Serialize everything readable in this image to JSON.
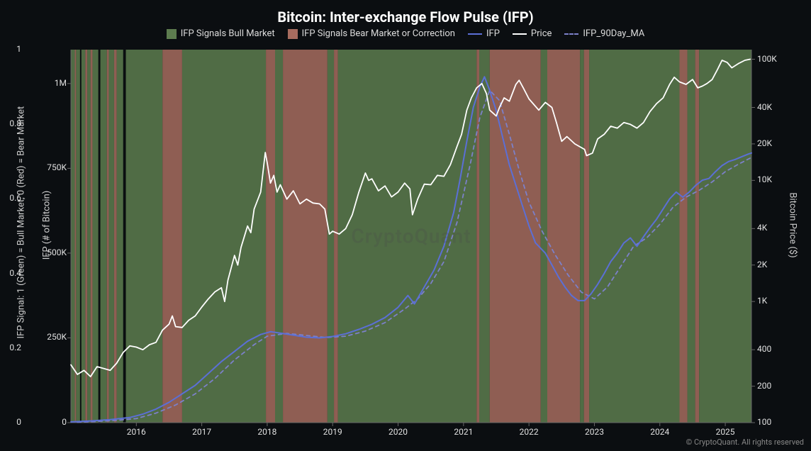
{
  "title": {
    "text": "Bitcoin: Inter-exchange Flow Pulse (IFP)",
    "fontsize": 20,
    "color": "#ffffff"
  },
  "copyright": "© CryptoQuant. All rights reserved",
  "watermark": "CryptoQuant",
  "legend": {
    "bull": {
      "label": "IFP Signals Bull Market",
      "color": "#5d7c4f"
    },
    "bear": {
      "label": "IFP Signals Bear Market or Correction",
      "color": "#a76c5f"
    },
    "ifp": {
      "label": "IFP",
      "color": "#5b6fd6"
    },
    "price": {
      "label": "Price",
      "color": "#ffffff"
    },
    "ma": {
      "label": "IFP_90Day_MA",
      "color": "#7c80c9"
    }
  },
  "chart": {
    "type": "composite-timeseries",
    "background": "#0b0e11",
    "plot_border_color": "#666666",
    "x": {
      "range": [
        2015.0,
        2025.4
      ],
      "ticks": [
        2016,
        2017,
        2018,
        2019,
        2020,
        2021,
        2022,
        2023,
        2024,
        2025
      ],
      "tick_color": "#e0e0e0",
      "fontsize": 12
    },
    "y_signal": {
      "label": "IFP Signal: 1 (Green) = Bull Market, 0 (Red) = Bear Market",
      "range": [
        0,
        1
      ],
      "ticks": [
        0,
        0.2,
        0.4,
        0.6,
        0.8,
        1
      ],
      "fontsize": 12
    },
    "y_ifp": {
      "label": "IFP (# of Bitcoin)",
      "range": [
        0,
        1100000
      ],
      "ticks": [
        0,
        250000,
        500000,
        750000,
        1000000
      ],
      "tick_labels": [
        "0",
        "250K",
        "500K",
        "750K",
        "1M"
      ],
      "fontsize": 12
    },
    "y_price": {
      "label": "Bitcoin Price ($)",
      "scale": "log",
      "range": [
        100,
        120000
      ],
      "ticks": [
        100,
        200,
        400,
        1000,
        2000,
        4000,
        10000,
        20000,
        40000,
        100000
      ],
      "tick_labels": [
        "100",
        "200",
        "400",
        "1K",
        "2K",
        "4K",
        "10K",
        "20K",
        "40K",
        "100K"
      ],
      "fontsize": 12
    },
    "region_colors": {
      "bull": "#5d7c4f",
      "bear": "#a76c5f",
      "neutral": "#0b0e11"
    },
    "region_opacity": 0.85,
    "regions": [
      {
        "from": 2015.0,
        "to": 2015.06,
        "s": "bull"
      },
      {
        "from": 2015.06,
        "to": 2015.08,
        "s": "bear"
      },
      {
        "from": 2015.08,
        "to": 2015.14,
        "s": "bull"
      },
      {
        "from": 2015.14,
        "to": 2015.16,
        "s": "neutral"
      },
      {
        "from": 2015.16,
        "to": 2015.22,
        "s": "bull"
      },
      {
        "from": 2015.22,
        "to": 2015.25,
        "s": "bear"
      },
      {
        "from": 2015.25,
        "to": 2015.3,
        "s": "bull"
      },
      {
        "from": 2015.3,
        "to": 2015.33,
        "s": "bear"
      },
      {
        "from": 2015.33,
        "to": 2015.42,
        "s": "bull"
      },
      {
        "from": 2015.42,
        "to": 2015.45,
        "s": "neutral"
      },
      {
        "from": 2015.45,
        "to": 2015.55,
        "s": "bull"
      },
      {
        "from": 2015.55,
        "to": 2015.58,
        "s": "bear"
      },
      {
        "from": 2015.58,
        "to": 2015.66,
        "s": "bull"
      },
      {
        "from": 2015.66,
        "to": 2015.7,
        "s": "bear"
      },
      {
        "from": 2015.7,
        "to": 2015.8,
        "s": "bull"
      },
      {
        "from": 2015.8,
        "to": 2015.84,
        "s": "neutral"
      },
      {
        "from": 2015.84,
        "to": 2016.4,
        "s": "bull"
      },
      {
        "from": 2016.4,
        "to": 2016.7,
        "s": "bear"
      },
      {
        "from": 2016.7,
        "to": 2017.98,
        "s": "bull"
      },
      {
        "from": 2017.98,
        "to": 2018.12,
        "s": "bear"
      },
      {
        "from": 2018.12,
        "to": 2018.24,
        "s": "bull"
      },
      {
        "from": 2018.24,
        "to": 2018.92,
        "s": "bear"
      },
      {
        "from": 2018.92,
        "to": 2019.02,
        "s": "bull"
      },
      {
        "from": 2019.02,
        "to": 2019.08,
        "s": "bear"
      },
      {
        "from": 2019.08,
        "to": 2021.2,
        "s": "bull"
      },
      {
        "from": 2021.2,
        "to": 2021.24,
        "s": "bear"
      },
      {
        "from": 2021.24,
        "to": 2021.4,
        "s": "bull"
      },
      {
        "from": 2021.4,
        "to": 2022.18,
        "s": "bear"
      },
      {
        "from": 2022.18,
        "to": 2022.28,
        "s": "bull"
      },
      {
        "from": 2022.28,
        "to": 2022.78,
        "s": "bear"
      },
      {
        "from": 2022.78,
        "to": 2022.84,
        "s": "bull"
      },
      {
        "from": 2022.84,
        "to": 2022.92,
        "s": "bear"
      },
      {
        "from": 2022.92,
        "to": 2024.3,
        "s": "bull"
      },
      {
        "from": 2024.3,
        "to": 2024.42,
        "s": "bear"
      },
      {
        "from": 2024.42,
        "to": 2024.54,
        "s": "bull"
      },
      {
        "from": 2024.54,
        "to": 2024.6,
        "s": "bear"
      },
      {
        "from": 2024.6,
        "to": 2025.4,
        "s": "bull"
      }
    ],
    "series_price": {
      "color": "#ffffff",
      "width": 1.8,
      "pts": [
        [
          2015.0,
          300
        ],
        [
          2015.1,
          250
        ],
        [
          2015.2,
          270
        ],
        [
          2015.3,
          240
        ],
        [
          2015.4,
          290
        ],
        [
          2015.5,
          280
        ],
        [
          2015.6,
          270
        ],
        [
          2015.7,
          310
        ],
        [
          2015.8,
          380
        ],
        [
          2015.9,
          430
        ],
        [
          2016.0,
          420
        ],
        [
          2016.1,
          400
        ],
        [
          2016.2,
          440
        ],
        [
          2016.3,
          460
        ],
        [
          2016.4,
          580
        ],
        [
          2016.5,
          650
        ],
        [
          2016.55,
          760
        ],
        [
          2016.6,
          620
        ],
        [
          2016.7,
          610
        ],
        [
          2016.8,
          700
        ],
        [
          2016.9,
          760
        ],
        [
          2017.0,
          900
        ],
        [
          2017.1,
          1050
        ],
        [
          2017.2,
          1200
        ],
        [
          2017.3,
          1300
        ],
        [
          2017.35,
          1000
        ],
        [
          2017.4,
          1500
        ],
        [
          2017.5,
          2400
        ],
        [
          2017.55,
          2000
        ],
        [
          2017.6,
          2800
        ],
        [
          2017.7,
          4200
        ],
        [
          2017.75,
          3700
        ],
        [
          2017.8,
          5800
        ],
        [
          2017.9,
          8000
        ],
        [
          2017.97,
          17000
        ],
        [
          2018.0,
          14000
        ],
        [
          2018.05,
          9500
        ],
        [
          2018.1,
          11000
        ],
        [
          2018.15,
          8000
        ],
        [
          2018.2,
          9200
        ],
        [
          2018.3,
          7000
        ],
        [
          2018.4,
          8200
        ],
        [
          2018.5,
          6400
        ],
        [
          2018.6,
          7000
        ],
        [
          2018.7,
          6500
        ],
        [
          2018.8,
          6400
        ],
        [
          2018.88,
          5800
        ],
        [
          2018.95,
          3600
        ],
        [
          2019.0,
          3800
        ],
        [
          2019.1,
          3600
        ],
        [
          2019.2,
          4000
        ],
        [
          2019.3,
          5200
        ],
        [
          2019.4,
          8000
        ],
        [
          2019.5,
          11500
        ],
        [
          2019.55,
          10000
        ],
        [
          2019.6,
          10300
        ],
        [
          2019.7,
          8200
        ],
        [
          2019.8,
          9000
        ],
        [
          2019.9,
          7300
        ],
        [
          2020.0,
          8000
        ],
        [
          2020.1,
          9500
        ],
        [
          2020.18,
          8500
        ],
        [
          2020.22,
          5200
        ],
        [
          2020.3,
          7000
        ],
        [
          2020.4,
          9300
        ],
        [
          2020.5,
          9200
        ],
        [
          2020.6,
          11000
        ],
        [
          2020.7,
          10800
        ],
        [
          2020.8,
          13500
        ],
        [
          2020.9,
          19000
        ],
        [
          2020.97,
          24000
        ],
        [
          2021.05,
          38000
        ],
        [
          2021.12,
          48000
        ],
        [
          2021.2,
          58000
        ],
        [
          2021.28,
          63000
        ],
        [
          2021.35,
          52000
        ],
        [
          2021.4,
          38000
        ],
        [
          2021.5,
          34000
        ],
        [
          2021.55,
          40000
        ],
        [
          2021.62,
          48000
        ],
        [
          2021.7,
          45000
        ],
        [
          2021.8,
          62000
        ],
        [
          2021.85,
          67000
        ],
        [
          2021.92,
          57000
        ],
        [
          2022.0,
          47000
        ],
        [
          2022.08,
          42000
        ],
        [
          2022.15,
          38000
        ],
        [
          2022.25,
          44000
        ],
        [
          2022.35,
          40000
        ],
        [
          2022.42,
          30000
        ],
        [
          2022.5,
          21000
        ],
        [
          2022.58,
          23000
        ],
        [
          2022.7,
          20000
        ],
        [
          2022.85,
          18000
        ],
        [
          2022.88,
          16000
        ],
        [
          2022.97,
          16800
        ],
        [
          2023.05,
          22000
        ],
        [
          2023.15,
          24000
        ],
        [
          2023.25,
          28000
        ],
        [
          2023.35,
          27000
        ],
        [
          2023.45,
          30000
        ],
        [
          2023.55,
          29000
        ],
        [
          2023.65,
          27000
        ],
        [
          2023.75,
          30000
        ],
        [
          2023.85,
          37000
        ],
        [
          2023.95,
          43000
        ],
        [
          2024.05,
          48000
        ],
        [
          2024.15,
          62000
        ],
        [
          2024.22,
          71000
        ],
        [
          2024.3,
          65000
        ],
        [
          2024.4,
          62000
        ],
        [
          2024.5,
          68000
        ],
        [
          2024.58,
          58000
        ],
        [
          2024.65,
          60000
        ],
        [
          2024.72,
          63000
        ],
        [
          2024.8,
          68000
        ],
        [
          2024.88,
          82000
        ],
        [
          2024.95,
          98000
        ],
        [
          2025.03,
          94000
        ],
        [
          2025.1,
          85000
        ],
        [
          2025.2,
          92000
        ],
        [
          2025.3,
          98000
        ],
        [
          2025.38,
          100000
        ]
      ]
    },
    "series_ifp": {
      "color": "#5b6fd6",
      "width": 2.0,
      "pts": [
        [
          2015.0,
          2000
        ],
        [
          2015.3,
          5000
        ],
        [
          2015.6,
          9000
        ],
        [
          2015.9,
          15000
        ],
        [
          2016.1,
          25000
        ],
        [
          2016.3,
          40000
        ],
        [
          2016.5,
          60000
        ],
        [
          2016.7,
          85000
        ],
        [
          2016.9,
          110000
        ],
        [
          2017.1,
          145000
        ],
        [
          2017.3,
          180000
        ],
        [
          2017.5,
          210000
        ],
        [
          2017.7,
          240000
        ],
        [
          2017.9,
          260000
        ],
        [
          2018.05,
          268000
        ],
        [
          2018.2,
          264000
        ],
        [
          2018.4,
          258000
        ],
        [
          2018.6,
          252000
        ],
        [
          2018.8,
          250000
        ],
        [
          2019.0,
          254000
        ],
        [
          2019.2,
          262000
        ],
        [
          2019.4,
          275000
        ],
        [
          2019.6,
          290000
        ],
        [
          2019.8,
          310000
        ],
        [
          2020.0,
          340000
        ],
        [
          2020.15,
          375000
        ],
        [
          2020.25,
          350000
        ],
        [
          2020.4,
          400000
        ],
        [
          2020.55,
          450000
        ],
        [
          2020.7,
          520000
        ],
        [
          2020.85,
          620000
        ],
        [
          2020.95,
          720000
        ],
        [
          2021.05,
          830000
        ],
        [
          2021.15,
          930000
        ],
        [
          2021.25,
          990000
        ],
        [
          2021.32,
          1020000
        ],
        [
          2021.4,
          980000
        ],
        [
          2021.5,
          920000
        ],
        [
          2021.6,
          840000
        ],
        [
          2021.7,
          760000
        ],
        [
          2021.8,
          700000
        ],
        [
          2021.9,
          640000
        ],
        [
          2022.0,
          580000
        ],
        [
          2022.1,
          530000
        ],
        [
          2022.25,
          500000
        ],
        [
          2022.35,
          465000
        ],
        [
          2022.45,
          430000
        ],
        [
          2022.55,
          400000
        ],
        [
          2022.65,
          375000
        ],
        [
          2022.75,
          360000
        ],
        [
          2022.85,
          360000
        ],
        [
          2022.95,
          380000
        ],
        [
          2023.05,
          408000
        ],
        [
          2023.15,
          440000
        ],
        [
          2023.25,
          475000
        ],
        [
          2023.35,
          500000
        ],
        [
          2023.45,
          530000
        ],
        [
          2023.55,
          545000
        ],
        [
          2023.65,
          520000
        ],
        [
          2023.75,
          548000
        ],
        [
          2023.85,
          575000
        ],
        [
          2023.95,
          600000
        ],
        [
          2024.05,
          630000
        ],
        [
          2024.15,
          660000
        ],
        [
          2024.25,
          680000
        ],
        [
          2024.35,
          665000
        ],
        [
          2024.45,
          680000
        ],
        [
          2024.55,
          700000
        ],
        [
          2024.65,
          715000
        ],
        [
          2024.75,
          720000
        ],
        [
          2024.85,
          740000
        ],
        [
          2024.95,
          758000
        ],
        [
          2025.05,
          770000
        ],
        [
          2025.15,
          776000
        ],
        [
          2025.25,
          784000
        ],
        [
          2025.35,
          792000
        ],
        [
          2025.4,
          795000
        ]
      ]
    },
    "series_ma": {
      "color": "#7c80c9",
      "width": 1.8,
      "dash": "5,5",
      "pts": [
        [
          2015.1,
          1000
        ],
        [
          2015.4,
          3500
        ],
        [
          2015.7,
          7000
        ],
        [
          2016.0,
          12000
        ],
        [
          2016.3,
          28000
        ],
        [
          2016.6,
          52000
        ],
        [
          2016.9,
          85000
        ],
        [
          2017.2,
          130000
        ],
        [
          2017.5,
          185000
        ],
        [
          2017.8,
          230000
        ],
        [
          2018.0,
          255000
        ],
        [
          2018.3,
          263000
        ],
        [
          2018.6,
          257000
        ],
        [
          2018.9,
          251000
        ],
        [
          2019.2,
          255000
        ],
        [
          2019.5,
          270000
        ],
        [
          2019.8,
          295000
        ],
        [
          2020.1,
          335000
        ],
        [
          2020.3,
          365000
        ],
        [
          2020.5,
          410000
        ],
        [
          2020.7,
          475000
        ],
        [
          2020.9,
          590000
        ],
        [
          2021.1,
          760000
        ],
        [
          2021.25,
          900000
        ],
        [
          2021.4,
          980000
        ],
        [
          2021.55,
          950000
        ],
        [
          2021.7,
          850000
        ],
        [
          2021.85,
          745000
        ],
        [
          2022.0,
          650000
        ],
        [
          2022.2,
          565000
        ],
        [
          2022.4,
          495000
        ],
        [
          2022.6,
          435000
        ],
        [
          2022.8,
          385000
        ],
        [
          2023.0,
          365000
        ],
        [
          2023.2,
          400000
        ],
        [
          2023.4,
          460000
        ],
        [
          2023.6,
          520000
        ],
        [
          2023.8,
          545000
        ],
        [
          2024.0,
          585000
        ],
        [
          2024.2,
          635000
        ],
        [
          2024.4,
          665000
        ],
        [
          2024.6,
          685000
        ],
        [
          2024.8,
          710000
        ],
        [
          2025.0,
          740000
        ],
        [
          2025.2,
          762000
        ],
        [
          2025.38,
          780000
        ]
      ]
    }
  }
}
